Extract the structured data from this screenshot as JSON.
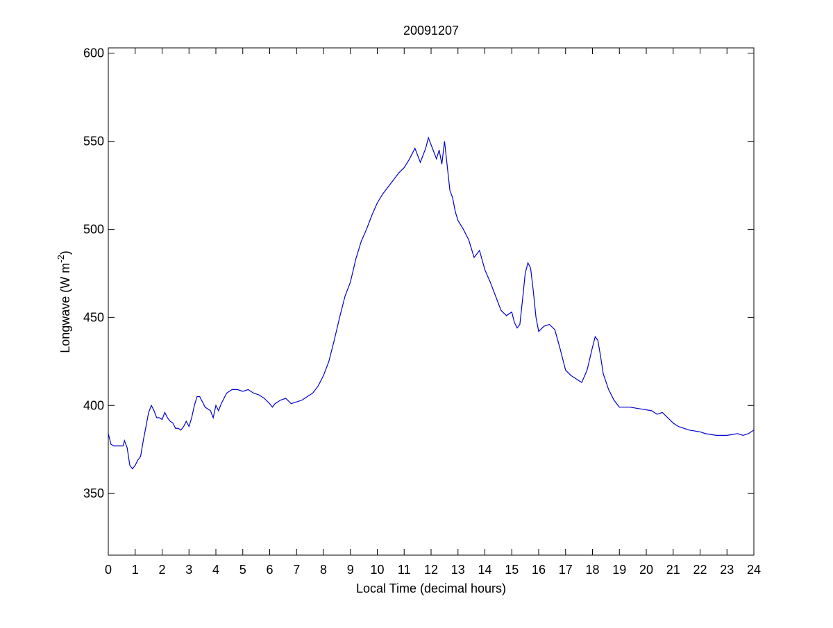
{
  "chart_data": {
    "type": "line",
    "title": "20091207",
    "x_label": "Local Time (decimal hours)",
    "y_label": {
      "text": "Longwave (W m",
      "superscript": "-2",
      "suffix": ")"
    },
    "x": [
      0,
      0.1,
      0.2,
      0.4,
      0.55,
      0.6,
      0.7,
      0.8,
      0.9,
      1.0,
      1.1,
      1.2,
      1.3,
      1.4,
      1.5,
      1.6,
      1.7,
      1.8,
      1.9,
      2.0,
      2.1,
      2.2,
      2.3,
      2.4,
      2.5,
      2.6,
      2.7,
      2.8,
      2.9,
      3.0,
      3.1,
      3.2,
      3.3,
      3.4,
      3.5,
      3.6,
      3.7,
      3.8,
      3.9,
      4.0,
      4.1,
      4.2,
      4.3,
      4.4,
      4.6,
      4.8,
      5.0,
      5.2,
      5.4,
      5.6,
      5.8,
      6.0,
      6.1,
      6.2,
      6.4,
      6.6,
      6.8,
      7.0,
      7.2,
      7.4,
      7.6,
      7.8,
      8.0,
      8.2,
      8.4,
      8.6,
      8.8,
      9.0,
      9.2,
      9.4,
      9.6,
      9.8,
      10.0,
      10.2,
      10.4,
      10.6,
      10.8,
      11.0,
      11.2,
      11.4,
      11.5,
      11.6,
      11.8,
      11.9,
      12.0,
      12.1,
      12.2,
      12.3,
      12.4,
      12.5,
      12.6,
      12.7,
      12.8,
      12.9,
      13.0,
      13.2,
      13.4,
      13.6,
      13.8,
      14.0,
      14.2,
      14.4,
      14.6,
      14.8,
      15.0,
      15.1,
      15.2,
      15.3,
      15.4,
      15.5,
      15.6,
      15.7,
      15.8,
      15.9,
      16.0,
      16.2,
      16.4,
      16.6,
      16.8,
      17.0,
      17.2,
      17.4,
      17.6,
      17.8,
      18.0,
      18.1,
      18.2,
      18.3,
      18.4,
      18.6,
      18.8,
      19.0,
      19.4,
      19.8,
      20.2,
      20.4,
      20.6,
      20.8,
      21.0,
      21.2,
      21.6,
      22.0,
      22.2,
      22.6,
      23.0,
      23.4,
      23.6,
      23.8,
      24.0
    ],
    "series": [
      {
        "color": "#0000cc",
        "values": [
          384,
          378,
          377,
          377,
          377,
          380,
          376,
          366,
          364,
          366,
          369,
          371,
          380,
          388,
          396,
          400,
          397,
          393,
          393,
          392,
          396,
          393,
          391,
          390,
          387,
          387,
          386,
          388,
          391,
          388,
          393,
          400,
          405,
          405,
          402,
          399,
          398,
          397,
          393,
          400,
          397,
          401,
          404,
          407,
          409,
          409,
          408,
          409,
          407,
          406,
          404,
          401,
          399,
          401,
          403,
          404,
          401,
          402,
          403,
          405,
          407,
          411,
          417,
          425,
          437,
          450,
          462,
          470,
          483,
          493,
          500,
          508,
          515,
          520,
          524,
          528,
          532,
          535,
          540,
          546,
          542,
          538,
          546,
          552,
          548,
          544,
          540,
          545,
          537,
          550,
          536,
          522,
          518,
          510,
          505,
          500,
          494,
          484,
          488,
          477,
          470,
          462,
          454,
          451,
          453,
          447,
          444,
          446,
          460,
          475,
          481,
          478,
          465,
          450,
          442,
          445,
          446,
          443,
          432,
          420,
          417,
          415,
          413,
          420,
          433,
          439,
          437,
          428,
          418,
          409,
          403,
          399,
          399,
          398,
          397,
          395,
          396,
          393,
          390,
          388,
          386,
          385,
          384,
          383,
          383,
          384,
          383,
          384,
          386
        ]
      }
    ],
    "xlim": [
      0,
      24
    ],
    "xticks": [
      0,
      1,
      2,
      3,
      4,
      5,
      6,
      7,
      8,
      9,
      10,
      11,
      12,
      13,
      14,
      15,
      16,
      17,
      18,
      19,
      20,
      21,
      22,
      23,
      24
    ],
    "ylim": [
      315,
      603
    ],
    "yticks": [
      350,
      400,
      450,
      500,
      550,
      600
    ]
  }
}
